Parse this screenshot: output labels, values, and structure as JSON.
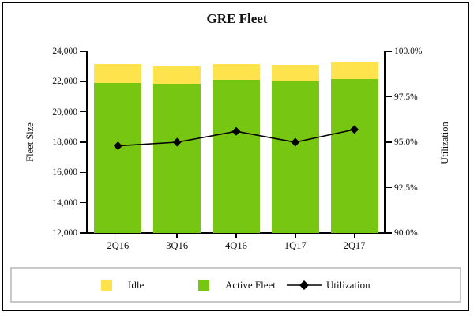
{
  "title": "GRE Fleet",
  "chart_data": {
    "type": "combo: stacked-bar + line",
    "title": "GRE Fleet",
    "categories": [
      "2Q16",
      "3Q16",
      "4Q16",
      "1Q17",
      "2Q17"
    ],
    "series": [
      {
        "name": "Idle",
        "type": "bar",
        "stack": "top",
        "axis": "left",
        "values": [
          1250,
          1150,
          1050,
          1100,
          1050
        ],
        "color": "#FFE34D"
      },
      {
        "name": "Active Fleet",
        "type": "bar",
        "stack": "bottom",
        "axis": "left",
        "values": [
          21900,
          21850,
          22100,
          22000,
          22200
        ],
        "color": "#76C612"
      },
      {
        "name": "Utilization",
        "type": "line",
        "axis": "right",
        "marker": "diamond",
        "values": [
          94.8,
          95.0,
          95.6,
          95.0,
          95.7
        ],
        "color": "#000000"
      }
    ],
    "left_axis": {
      "label": "Fleet Size",
      "min": 12000,
      "max": 24000,
      "tick_values": [
        12000,
        14000,
        16000,
        18000,
        20000,
        22000,
        24000
      ],
      "tick_labels": [
        "12,000",
        "14,000",
        "16,000",
        "18,000",
        "20,000",
        "22,000",
        "24,000"
      ]
    },
    "right_axis": {
      "label": "Utilization",
      "min": 90,
      "max": 100,
      "tick_values": [
        90,
        92.5,
        95,
        97.5,
        100
      ],
      "tick_labels": [
        "90.0%",
        "92.5%",
        "95.0%",
        "97.5%",
        "100.0%"
      ]
    },
    "legend_position": "bottom",
    "grid": false
  }
}
